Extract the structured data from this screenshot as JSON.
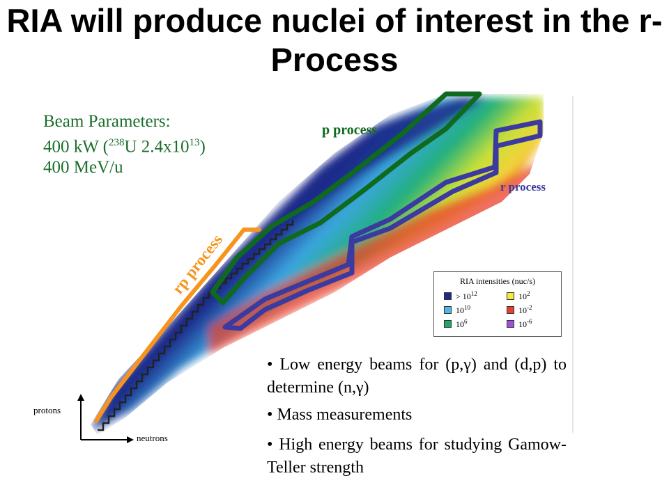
{
  "title": "RIA will produce nuclei of interest in the r-Process",
  "beam": {
    "line1": "Beam Parameters:",
    "line2_pre": "400 kW (",
    "line2_sup1": "238",
    "line2_mid": "U 2.4x10",
    "line2_sup2": "13",
    "line2_post": ")",
    "line3": "400 MeV/u"
  },
  "labels": {
    "p_process": "p process",
    "r_process": "r process",
    "rp_process": "rp process",
    "protons": "protons",
    "neutrons": "neutrons"
  },
  "legend": {
    "title": "RIA intensities (nuc/s)",
    "items": [
      {
        "base": "> 10",
        "exp": "12",
        "color": "#1c2a8a"
      },
      {
        "base": "10",
        "exp": "2",
        "color": "#f4ea3a"
      },
      {
        "base": "10",
        "exp": "10",
        "color": "#4cb6e6"
      },
      {
        "base": "10",
        "exp": "-2",
        "color": "#e8402e"
      },
      {
        "base": "10",
        "exp": "6",
        "color": "#1da86a"
      },
      {
        "base": "10",
        "exp": "-6",
        "color": "#a050d8"
      }
    ]
  },
  "bullets": [
    "• Low energy beams for (p,γ) and (d,p) to determine (n,γ)",
    "• Mass measurements",
    "• High energy beams for studying Gamow-Teller strength"
  ],
  "colors": {
    "green": "#0f6a1e",
    "blue": "#3a3aa0",
    "orange": "#f7941d",
    "beam_text": "#1a6e2a"
  }
}
